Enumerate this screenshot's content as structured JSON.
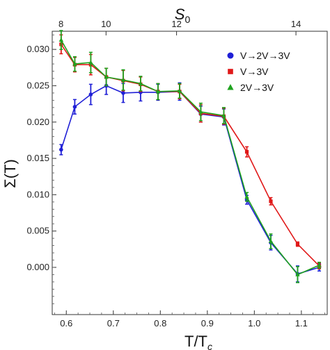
{
  "chart_data": {
    "type": "line",
    "xlabel": "T/T",
    "xlabel_sub": "c",
    "ylabel": "Σ(T)",
    "top_xlabel": "S",
    "top_xlabel_sub": "0",
    "xlim": [
      0.57,
      1.155
    ],
    "ylim": [
      -0.0065,
      0.0325
    ],
    "x_ticks": [
      {
        "value": 0.6,
        "label": "0.6"
      },
      {
        "value": 0.7,
        "label": "0.7"
      },
      {
        "value": 0.8,
        "label": "0.8"
      },
      {
        "value": 0.9,
        "label": "0.9"
      },
      {
        "value": 1.0,
        "label": "1.0"
      },
      {
        "value": 1.1,
        "label": "1.1"
      }
    ],
    "y_ticks": [
      {
        "value": 0.0,
        "label": "0.000"
      },
      {
        "value": 0.005,
        "label": "0.005"
      },
      {
        "value": 0.01,
        "label": "0.010"
      },
      {
        "value": 0.015,
        "label": "0.015"
      },
      {
        "value": 0.02,
        "label": "0.020"
      },
      {
        "value": 0.025,
        "label": "0.025"
      },
      {
        "value": 0.03,
        "label": "0.030"
      }
    ],
    "top_ticks": [
      {
        "value": 0.5887,
        "label": "8"
      },
      {
        "value": 0.6845,
        "label": "10"
      },
      {
        "value": 0.8345,
        "label": "12"
      },
      {
        "value": 1.0885,
        "label": "14"
      }
    ],
    "legend_position": "top-right",
    "series": [
      {
        "name": "V→2V→3V",
        "color": "#1f1fd6",
        "marker": "circle",
        "x": [
          0.589,
          0.618,
          0.652,
          0.685,
          0.721,
          0.758,
          0.795,
          0.841,
          0.886,
          0.935,
          0.984,
          1.035,
          1.092,
          1.138
        ],
        "y": [
          0.0162,
          0.0221,
          0.0238,
          0.025,
          0.024,
          0.0241,
          0.0241,
          0.0242,
          0.0211,
          0.0207,
          0.0093,
          0.0034,
          -0.0009,
          0.0
        ],
        "err": [
          0.0007,
          0.001,
          0.0014,
          0.0012,
          0.0013,
          0.0012,
          0.0011,
          0.0012,
          0.0011,
          0.0011,
          0.0006,
          0.001,
          0.0011,
          0.0005
        ]
      },
      {
        "name": "V→3V",
        "color": "#e01818",
        "marker": "square",
        "x": [
          0.589,
          0.618,
          0.652,
          0.685,
          0.721,
          0.758,
          0.795,
          0.841,
          0.886,
          0.935,
          0.984,
          1.035,
          1.092,
          1.138
        ],
        "y": [
          0.0307,
          0.0279,
          0.0279,
          0.0262,
          0.0257,
          0.0252,
          0.0242,
          0.0242,
          0.0212,
          0.0208,
          0.0159,
          0.0091,
          0.0032,
          0.0002
        ],
        "err": [
          0.0013,
          0.001,
          0.0014,
          0.0012,
          0.0014,
          0.001,
          0.0011,
          0.001,
          0.0012,
          0.0011,
          0.0007,
          0.0005,
          0.0003,
          0.0004
        ]
      },
      {
        "name": "2V→3V",
        "color": "#1fa31f",
        "marker": "triangle",
        "x": [
          0.589,
          0.618,
          0.652,
          0.685,
          0.721,
          0.758,
          0.795,
          0.841,
          0.886,
          0.935,
          0.984,
          1.035,
          1.092,
          1.138
        ],
        "y": [
          0.0313,
          0.028,
          0.0282,
          0.0262,
          0.0258,
          0.0253,
          0.0242,
          0.0243,
          0.0214,
          0.0209,
          0.0097,
          0.0036,
          -0.001,
          0.0003
        ],
        "err": [
          0.0013,
          0.001,
          0.0014,
          0.0012,
          0.0014,
          0.001,
          0.0011,
          0.001,
          0.0012,
          0.0011,
          0.0006,
          0.001,
          0.0011,
          0.0004
        ]
      }
    ]
  }
}
